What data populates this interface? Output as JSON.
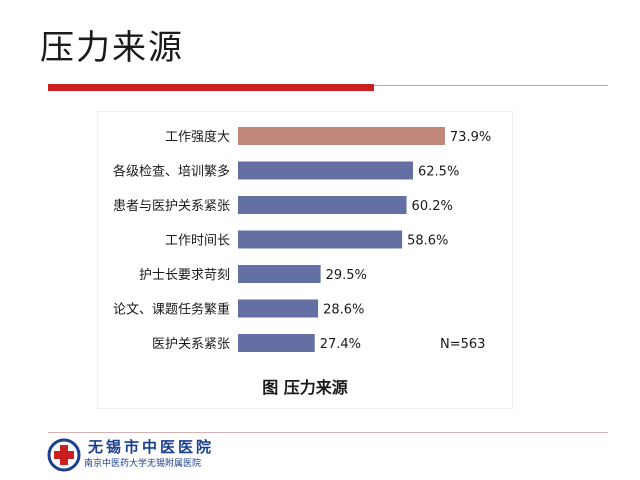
{
  "slide": {
    "title": "压力来源"
  },
  "footer": {
    "hospital_name": "无锡市中医医院",
    "hospital_subtitle": "南京中医药大学无锡附属医院",
    "logo_icon": "red-cross-circle-icon"
  },
  "colors": {
    "accent_red": "#cc1f1f",
    "bar_highlight": "#c0877a",
    "bar_default": "#6470a4",
    "footer_blue": "#1a3f8f"
  },
  "chart_data": {
    "type": "bar",
    "orientation": "horizontal",
    "title": "图 压力来源",
    "categories": [
      "工作强度大",
      "各级检查、培训繁多",
      "患者与医护关系紧张",
      "工作时间长",
      "护士长要求苛刻",
      "论文、课题任务繁重",
      "医护关系紧张"
    ],
    "values": [
      73.9,
      62.5,
      60.2,
      58.6,
      29.5,
      28.6,
      27.4
    ],
    "value_labels": [
      "73.9%",
      "62.5%",
      "60.2%",
      "58.6%",
      "29.5%",
      "28.6%",
      "27.4%"
    ],
    "highlight_index": 0,
    "annotation": "N=563",
    "xlim": [
      0,
      100
    ],
    "grid": false,
    "legend": "none"
  }
}
